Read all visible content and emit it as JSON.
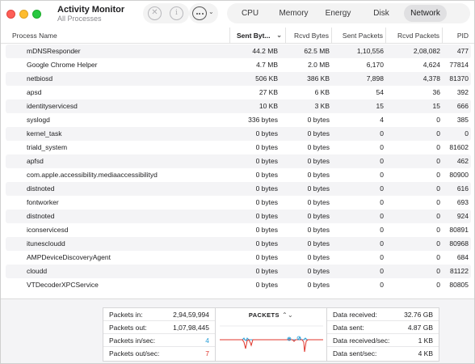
{
  "window": {
    "title": "Activity Monitor",
    "subtitle": "All Processes"
  },
  "toolbar": {
    "stop_icon": "xmark-circle-icon",
    "info_icon": "info-circle-icon",
    "more_icon": "ellipsis-circle-icon",
    "info_glyph": "i",
    "stop_glyph": "✕",
    "more_chevron": "⌄"
  },
  "tabs": [
    {
      "label": "CPU",
      "active": false
    },
    {
      "label": "Memory",
      "active": false
    },
    {
      "label": "Energy",
      "active": false
    },
    {
      "label": "Disk",
      "active": false
    },
    {
      "label": "Network",
      "active": true
    }
  ],
  "table": {
    "columns": {
      "name": "Process Name",
      "sent_bytes": "Sent Byt...",
      "sort_indicator": "⌄",
      "rcvd_bytes": "Rcvd Bytes",
      "sent_packets": "Sent Packets",
      "rcvd_packets": "Rcvd Packets",
      "pid": "PID"
    },
    "rows": [
      {
        "name": "mDNSResponder",
        "sent_bytes": "44.2 MB",
        "rcvd_bytes": "62.5 MB",
        "sent_packets": "1,10,556",
        "rcvd_packets": "2,08,082",
        "pid": "477"
      },
      {
        "name": "Google Chrome Helper",
        "sent_bytes": "4.7 MB",
        "rcvd_bytes": "2.0 MB",
        "sent_packets": "6,170",
        "rcvd_packets": "4,624",
        "pid": "77814"
      },
      {
        "name": "netbiosd",
        "sent_bytes": "506 KB",
        "rcvd_bytes": "386 KB",
        "sent_packets": "7,898",
        "rcvd_packets": "4,378",
        "pid": "81370"
      },
      {
        "name": "apsd",
        "sent_bytes": "27 KB",
        "rcvd_bytes": "6 KB",
        "sent_packets": "54",
        "rcvd_packets": "36",
        "pid": "392"
      },
      {
        "name": "identityservicesd",
        "sent_bytes": "10 KB",
        "rcvd_bytes": "3 KB",
        "sent_packets": "15",
        "rcvd_packets": "15",
        "pid": "666"
      },
      {
        "name": "syslogd",
        "sent_bytes": "336 bytes",
        "rcvd_bytes": "0 bytes",
        "sent_packets": "4",
        "rcvd_packets": "0",
        "pid": "385"
      },
      {
        "name": "kernel_task",
        "sent_bytes": "0 bytes",
        "rcvd_bytes": "0 bytes",
        "sent_packets": "0",
        "rcvd_packets": "0",
        "pid": "0"
      },
      {
        "name": "triald_system",
        "sent_bytes": "0 bytes",
        "rcvd_bytes": "0 bytes",
        "sent_packets": "0",
        "rcvd_packets": "0",
        "pid": "81602"
      },
      {
        "name": "apfsd",
        "sent_bytes": "0 bytes",
        "rcvd_bytes": "0 bytes",
        "sent_packets": "0",
        "rcvd_packets": "0",
        "pid": "462"
      },
      {
        "name": "com.apple.accessibility.mediaaccessibilityd",
        "sent_bytes": "0 bytes",
        "rcvd_bytes": "0 bytes",
        "sent_packets": "0",
        "rcvd_packets": "0",
        "pid": "80900"
      },
      {
        "name": "distnoted",
        "sent_bytes": "0 bytes",
        "rcvd_bytes": "0 bytes",
        "sent_packets": "0",
        "rcvd_packets": "0",
        "pid": "616"
      },
      {
        "name": "fontworker",
        "sent_bytes": "0 bytes",
        "rcvd_bytes": "0 bytes",
        "sent_packets": "0",
        "rcvd_packets": "0",
        "pid": "693"
      },
      {
        "name": "distnoted",
        "sent_bytes": "0 bytes",
        "rcvd_bytes": "0 bytes",
        "sent_packets": "0",
        "rcvd_packets": "0",
        "pid": "924"
      },
      {
        "name": "iconservicesd",
        "sent_bytes": "0 bytes",
        "rcvd_bytes": "0 bytes",
        "sent_packets": "0",
        "rcvd_packets": "0",
        "pid": "80891"
      },
      {
        "name": "itunescloudd",
        "sent_bytes": "0 bytes",
        "rcvd_bytes": "0 bytes",
        "sent_packets": "0",
        "rcvd_packets": "0",
        "pid": "80968"
      },
      {
        "name": "AMPDeviceDiscoveryAgent",
        "sent_bytes": "0 bytes",
        "rcvd_bytes": "0 bytes",
        "sent_packets": "0",
        "rcvd_packets": "0",
        "pid": "684"
      },
      {
        "name": "cloudd",
        "sent_bytes": "0 bytes",
        "rcvd_bytes": "0 bytes",
        "sent_packets": "0",
        "rcvd_packets": "0",
        "pid": "81122"
      },
      {
        "name": "VTDecoderXPCService",
        "sent_bytes": "0 bytes",
        "rcvd_bytes": "0 bytes",
        "sent_packets": "0",
        "rcvd_packets": "0",
        "pid": "80805"
      }
    ]
  },
  "summary": {
    "packets_in": {
      "label": "Packets in:",
      "value": "2,94,59,994"
    },
    "packets_out": {
      "label": "Packets out:",
      "value": "1,07,98,445"
    },
    "packets_in_sec": {
      "label": "Packets in/sec:",
      "value": "4"
    },
    "packets_out_sec": {
      "label": "Packets out/sec:",
      "value": "7"
    },
    "graph_title": "PACKETS",
    "graph_selector": "⌃⌄",
    "data_received": {
      "label": "Data received:",
      "value": "32.76 GB"
    },
    "data_sent": {
      "label": "Data sent:",
      "value": "4.87 GB"
    },
    "data_received_sec": {
      "label": "Data received/sec:",
      "value": "1 KB"
    },
    "data_sent_sec": {
      "label": "Data sent/sec:",
      "value": "4 KB"
    }
  },
  "colors": {
    "in_series": "#2a9fd8",
    "out_series": "#e0352b",
    "alt_row": "#f4f4f6"
  }
}
